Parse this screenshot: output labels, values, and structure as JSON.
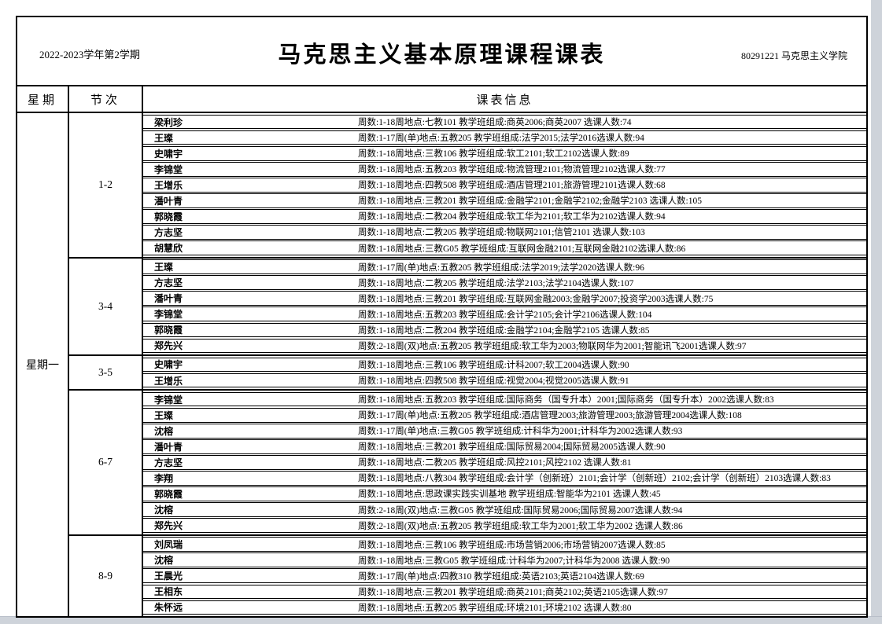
{
  "page": {
    "semester": "2022-2023学年第2学期",
    "title": "马克思主义基本原理课程课表",
    "dept": "80291221 马克思主义学院"
  },
  "colors": {
    "page_bg": "#ffffff",
    "border": "#000000",
    "viewer_edge_gray": "#ced3da"
  },
  "table": {
    "headers": {
      "weekday": "星期",
      "period": "节次",
      "info": "课表信息"
    },
    "weekday": "星期一",
    "sections": [
      {
        "period": "1-2",
        "rows": [
          {
            "teacher": "梁利珍",
            "info": "周数:1-18周地点:七教101 教学班组成:商英2006;商英2007 选课人数:74"
          },
          {
            "teacher": "王璨",
            "info": "周数:1-17周(单)地点:五教205 教学班组成:法学2015;法学2016选课人数:94"
          },
          {
            "teacher": "史啸宇",
            "info": "周数:1-18周地点:三教106 教学班组成:软工2101;软工2102选课人数:89"
          },
          {
            "teacher": "李锦堂",
            "info": "周数:1-18周地点:五教203 教学班组成:物流管理2101;物流管理2102选课人数:77"
          },
          {
            "teacher": "王增乐",
            "info": "周数:1-18周地点:四教508 教学班组成:酒店管理2101;旅游管理2101选课人数:68"
          },
          {
            "teacher": "潘叶青",
            "info": "周数:1-18周地点:三教201 教学班组成:金融学2101;金融学2102;金融学2103 选课人数:105"
          },
          {
            "teacher": "郭晓霞",
            "info": "周数:1-18周地点:二教204 教学班组成:软工华为2101;软工华为2102选课人数:94"
          },
          {
            "teacher": "方志坚",
            "info": "周数:1-18周地点:二教205 教学班组成:物联网2101;信管2101 选课人数:103"
          },
          {
            "teacher": "胡慧欣",
            "info": "周数:1-18周地点:三教G05 教学班组成:互联网金融2101;互联网金融2102选课人数:86"
          }
        ]
      },
      {
        "period": "3-4",
        "rows": [
          {
            "teacher": "王璨",
            "info": "周数:1-17周(单)地点:五教205 教学班组成:法学2019;法学2020选课人数:96"
          },
          {
            "teacher": "方志坚",
            "info": "周数:1-18周地点:二教205 教学班组成:法学2103;法学2104选课人数:107"
          },
          {
            "teacher": "潘叶青",
            "info": "周数:1-18周地点:三教201 教学班组成:互联网金融2003;金融学2007;投资学2003选课人数:75"
          },
          {
            "teacher": "李锦堂",
            "info": "周数:1-18周地点:五教203 教学班组成:会计学2105;会计学2106选课人数:104"
          },
          {
            "teacher": "郭晓霞",
            "info": "周数:1-18周地点:二教204 教学班组成:金融学2104;金融学2105 选课人数:85"
          },
          {
            "teacher": "郑先兴",
            "info": "周数:2-18周(双)地点:五教205 教学班组成:软工华为2003;物联网华为2001;智能讯飞2001选课人数:97"
          }
        ]
      },
      {
        "period": "3-5",
        "rows": [
          {
            "teacher": "史啸宇",
            "info": "周数:1-18周地点:三教106 教学班组成:计科2007;软工2004选课人数:90"
          },
          {
            "teacher": "王增乐",
            "info": "周数:1-18周地点:四教508 教学班组成:视觉2004;视觉2005选课人数:91"
          }
        ]
      },
      {
        "period": "6-7",
        "rows": [
          {
            "teacher": "李锦堂",
            "info": "周数:1-18周地点:五教203 教学班组成:国际商务（国专升本）2001;国际商务（国专升本）2002选课人数:83"
          },
          {
            "teacher": "王璨",
            "info": "周数:1-17周(单)地点:五教205 教学班组成:酒店管理2003;旅游管理2003;旅游管理2004选课人数:108"
          },
          {
            "teacher": "沈榕",
            "info": "周数:1-17周(单)地点:三教G05 教学班组成:计科华为2001;计科华为2002选课人数:93"
          },
          {
            "teacher": "潘叶青",
            "info": "周数:1-18周地点:三教201 教学班组成:国际贸易2004;国际贸易2005选课人数:90"
          },
          {
            "teacher": "方志坚",
            "info": "周数:1-18周地点:二教205 教学班组成:风控2101;风控2102 选课人数:81"
          },
          {
            "teacher": "李翔",
            "info": "周数:1-18周地点:八教304 教学班组成:会计学（创新班）2101;会计学（创新班）2102;会计学（创新班）2103选课人数:83"
          },
          {
            "teacher": "郭晓霞",
            "info": "周数:1-18周地点:思政课实践实训基地 教学班组成:智能华为2101 选课人数:45"
          },
          {
            "teacher": "沈榕",
            "info": "周数:2-18周(双)地点:三教G05 教学班组成:国际贸易2006;国际贸易2007选课人数:94"
          },
          {
            "teacher": "郑先兴",
            "info": "周数:2-18周(双)地点:五教205 教学班组成:软工华为2001;软工华为2002 选课人数:86"
          }
        ]
      },
      {
        "period": "8-9",
        "rows": [
          {
            "teacher": "刘凤瑞",
            "info": "周数:1-18周地点:三教106 教学班组成:市场营销2006;市场营销2007选课人数:85"
          },
          {
            "teacher": "沈榕",
            "info": "周数:1-18周地点:三教G05 教学班组成:计科华为2007;计科华为2008 选课人数:90"
          },
          {
            "teacher": "王晨光",
            "info": "周数:1-17周(单)地点:四教310 教学班组成:英语2103;英语2104选课人数:69"
          },
          {
            "teacher": "王相东",
            "info": "周数:1-18周地点:三教201 教学班组成:商英2101;商英2102;英语2105选课人数:97"
          },
          {
            "teacher": "朱怀远",
            "info": "周数:1-18周地点:五教205 教学班组成:环境2101;环境2102 选课人数:80"
          }
        ]
      }
    ]
  }
}
